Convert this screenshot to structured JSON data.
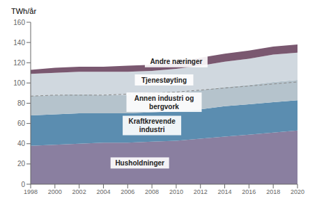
{
  "chart_data": {
    "type": "area",
    "stacked": true,
    "y_label": "TWh/år",
    "x": [
      1998,
      2000,
      2002,
      2004,
      2006,
      2008,
      2010,
      2012,
      2014,
      2016,
      2018,
      2020
    ],
    "xlim": [
      1998,
      2020
    ],
    "xticks": [
      1998,
      2000,
      2002,
      2004,
      2006,
      2008,
      2010,
      2012,
      2014,
      2016,
      2018,
      2020
    ],
    "ylim": [
      0,
      160
    ],
    "yticks": [
      0,
      20,
      40,
      60,
      80,
      100,
      120,
      140,
      160
    ],
    "grid": false,
    "series": [
      {
        "name": "Husholdninger",
        "color": "#8a7fa0",
        "values": [
          38,
          39,
          40,
          41,
          41,
          42,
          43,
          45,
          47,
          49,
          51,
          53
        ]
      },
      {
        "name": "Kraftkrevende\nindustri",
        "color": "#5b8db0",
        "values": [
          30,
          30,
          30,
          29,
          29,
          29,
          29,
          29,
          30,
          30,
          30,
          30
        ]
      },
      {
        "name": "Annen industri og\nbergvork",
        "color": "#b5c3cc",
        "values": [
          19,
          19,
          19,
          18,
          18,
          18,
          18,
          19,
          19,
          19,
          20,
          20
        ]
      },
      {
        "name": "Tjenestøyting",
        "color": "#d0d8df",
        "values": [
          22,
          22,
          22,
          23,
          23,
          23,
          24,
          24,
          25,
          26,
          27,
          27
        ]
      },
      {
        "name": "Andre næringer",
        "color": "#7a5870",
        "values": [
          4,
          5,
          5,
          5,
          6,
          6,
          6,
          8,
          8,
          8,
          8,
          8
        ]
      },
      {
        "type": "line",
        "stacked": false,
        "line_style": "dashed",
        "color": "#888888",
        "values": [
          87,
          88,
          88,
          88,
          89,
          90,
          91,
          93,
          95,
          97,
          99,
          101
        ]
      }
    ],
    "annotations": [
      {
        "text": "Husholdninger",
        "x": 2007,
        "y": 21
      },
      {
        "text": "Kraftkrevende\nindustri",
        "x": 2008,
        "y": 58
      },
      {
        "text": "Annen industri og\nbergvork",
        "x": 2009,
        "y": 81
      },
      {
        "text": "Tjenestøyting",
        "x": 2009,
        "y": 103
      },
      {
        "text": "Andre næringer",
        "x": 2010,
        "y": 121
      }
    ]
  }
}
